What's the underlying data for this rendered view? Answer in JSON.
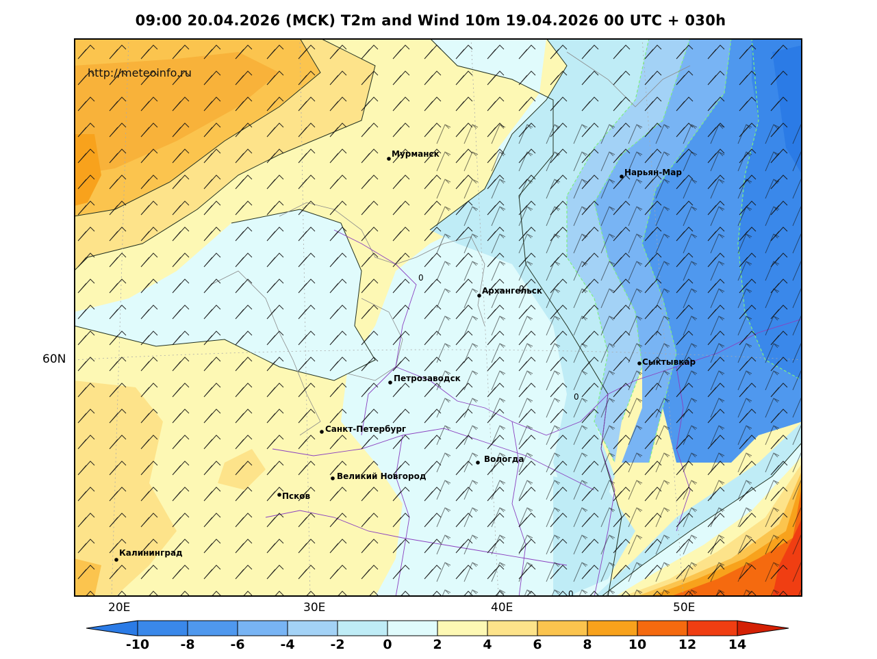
{
  "title": "09:00 20.04.2026 (MCK) T2m and Wind 10m 19.04.2026 00 UTC + 030h",
  "watermark": "http://meteoinfo.ru",
  "axes": {
    "lat_labels": [
      "60N"
    ],
    "lon_labels": [
      "20E",
      "30E",
      "40E",
      "50E"
    ]
  },
  "cities": [
    {
      "name": "Мурманск"
    },
    {
      "name": "Нарьян-Мар"
    },
    {
      "name": "Архангельск"
    },
    {
      "name": "Сыктывкар"
    },
    {
      "name": "Петрозаводск"
    },
    {
      "name": "Санкт-Петербург"
    },
    {
      "name": "Вологда"
    },
    {
      "name": "Великий Новгород"
    },
    {
      "name": "Псков"
    },
    {
      "name": "Калининград"
    }
  ],
  "contour_labels": [
    "0",
    "0",
    "0",
    "0"
  ],
  "colorbar": {
    "ticks": [
      "-10",
      "-8",
      "-6",
      "-4",
      "-2",
      "0",
      "2",
      "4",
      "6",
      "8",
      "10",
      "12",
      "14"
    ],
    "colors": {
      "below_-10": "#2b7be6",
      "-10_-8": "#3a88ea",
      "-8_-6": "#4f98ee",
      "-6_-4": "#78b4f4",
      "-4_-2": "#a3d2f6",
      "-2_0": "#bfecf6",
      "0_2": "#e0fbfc",
      "2_4": "#fdf8b4",
      "4_6": "#fde38a",
      "6_8": "#fbc44e",
      "8_10": "#f8a21c",
      "10_12": "#f56a0f",
      "12_14": "#f03e12",
      "above_14": "#d42004"
    }
  }
}
